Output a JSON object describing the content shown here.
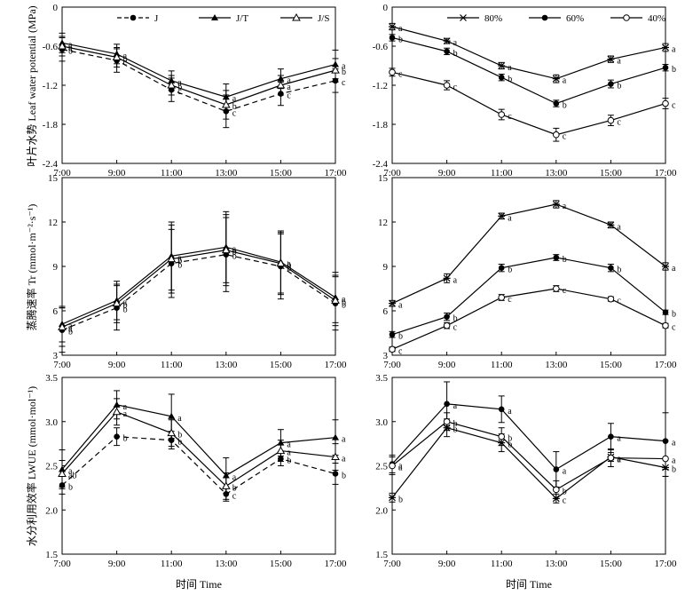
{
  "figure": {
    "x_axis_label": "时间 Time",
    "rows": [
      {
        "ylabel": "叶片水势 Leaf water potential (MPa)"
      },
      {
        "ylabel": "蒸腾速率 Tr (mmol·m⁻²·s⁻¹)"
      },
      {
        "ylabel": "水分利用效率 LWUE (mmol·mol⁻¹)"
      }
    ]
  },
  "chart_data": [
    {
      "id": "lwp-species",
      "row": 0,
      "col": 0,
      "type": "line",
      "x": [
        "7:00",
        "9:00",
        "11:00",
        "13:00",
        "15:00",
        "17:00"
      ],
      "ylim": [
        -2.4,
        0
      ],
      "yticks": [
        "0",
        "-0.6",
        "-1.2",
        "-1.8",
        "-2.4"
      ],
      "ytick_values": [
        0,
        -0.6,
        -1.2,
        -1.8,
        -2.4
      ],
      "legend": "top",
      "series": [
        {
          "name": "J",
          "marker": "filled-circle",
          "dash": true,
          "values": [
            -0.65,
            -0.82,
            -1.27,
            -1.6,
            -1.33,
            -1.13
          ],
          "errors": [
            0.18,
            0.18,
            0.18,
            0.25,
            0.18,
            0.18
          ],
          "labels": [
            "b",
            "c",
            "c",
            "c",
            "c",
            "c"
          ]
        },
        {
          "name": "J/T",
          "marker": "filled-triangle",
          "dash": false,
          "values": [
            -0.55,
            -0.72,
            -1.13,
            -1.38,
            -1.1,
            -0.88
          ],
          "errors": [
            0.15,
            0.15,
            0.15,
            0.2,
            0.15,
            0.22
          ],
          "labels": [
            "a",
            "a",
            "a",
            "a",
            "a",
            "a"
          ]
        },
        {
          "name": "J/S",
          "marker": "open-triangle",
          "dash": false,
          "values": [
            -0.6,
            -0.77,
            -1.2,
            -1.5,
            -1.2,
            -0.97
          ],
          "errors": [
            0.15,
            0.15,
            0.15,
            0.22,
            0.15,
            0.18
          ],
          "labels": [
            "a",
            "b",
            "b",
            "b",
            "a",
            "b"
          ]
        }
      ]
    },
    {
      "id": "lwp-moisture",
      "row": 0,
      "col": 1,
      "type": "line",
      "x": [
        "7:00",
        "9:00",
        "11:00",
        "13:00",
        "15:00",
        "17:00"
      ],
      "ylim": [
        -2.4,
        0
      ],
      "yticks": [
        "0",
        "-0.6",
        "-1.2",
        "-1.8",
        "-2.4"
      ],
      "ytick_values": [
        0,
        -0.6,
        -1.2,
        -1.8,
        -2.4
      ],
      "legend": "top",
      "series": [
        {
          "name": "80%",
          "marker": "asterisk",
          "dash": false,
          "values": [
            -0.3,
            -0.52,
            -0.9,
            -1.1,
            -0.8,
            -0.62
          ],
          "errors": [
            0.05,
            0.04,
            0.05,
            0.06,
            0.05,
            0.06
          ],
          "labels": [
            "a",
            "a",
            "a",
            "a",
            "a",
            "a"
          ]
        },
        {
          "name": "60%",
          "marker": "filled-circle",
          "dash": false,
          "values": [
            -0.47,
            -0.68,
            -1.08,
            -1.48,
            -1.18,
            -0.93
          ],
          "errors": [
            0.05,
            0.05,
            0.05,
            0.05,
            0.06,
            0.05
          ],
          "labels": [
            "b",
            "b",
            "b",
            "b",
            "b",
            "b"
          ]
        },
        {
          "name": "40%",
          "marker": "open-circle",
          "dash": false,
          "values": [
            -1.0,
            -1.2,
            -1.65,
            -1.96,
            -1.74,
            -1.48
          ],
          "errors": [
            0.06,
            0.07,
            0.08,
            0.1,
            0.08,
            0.08
          ],
          "labels": [
            "c",
            "c",
            "c",
            "c",
            "c",
            "c"
          ]
        }
      ]
    },
    {
      "id": "tr-species",
      "row": 1,
      "col": 0,
      "type": "line",
      "x": [
        "7:00",
        "9:00",
        "11:00",
        "13:00",
        "15:00",
        "17:00"
      ],
      "ylim": [
        3,
        15
      ],
      "yticks": [
        "3",
        "6",
        "9",
        "12",
        "15"
      ],
      "ytick_values": [
        3,
        6,
        9,
        12,
        15
      ],
      "series": [
        {
          "name": "J",
          "marker": "filled-circle",
          "dash": true,
          "values": [
            4.7,
            6.2,
            9.2,
            9.8,
            9.0,
            6.5
          ],
          "errors": [
            1.5,
            1.5,
            2.3,
            2.5,
            2.2,
            1.8
          ],
          "labels": [
            "b",
            "b",
            "b",
            "b",
            "b",
            "b"
          ]
        },
        {
          "name": "J/T",
          "marker": "filled-triangle",
          "dash": false,
          "values": [
            5.1,
            6.7,
            9.7,
            10.3,
            9.3,
            6.9
          ],
          "errors": [
            1.2,
            1.3,
            2.3,
            2.4,
            2.1,
            1.7
          ],
          "labels": [
            "a",
            "a",
            "a",
            "a",
            "a",
            "a"
          ]
        },
        {
          "name": "J/S",
          "marker": "open-triangle",
          "dash": false,
          "values": [
            4.9,
            6.5,
            9.5,
            10.1,
            9.2,
            6.7
          ],
          "errors": [
            1.3,
            1.3,
            2.3,
            2.4,
            2.1,
            1.7
          ],
          "labels": [
            "a",
            "b",
            "b",
            "b",
            "b",
            "b"
          ]
        }
      ]
    },
    {
      "id": "tr-moisture",
      "row": 1,
      "col": 1,
      "type": "line",
      "x": [
        "7:00",
        "9:00",
        "11:00",
        "13:00",
        "15:00",
        "17:00"
      ],
      "ylim": [
        3,
        15
      ],
      "yticks": [
        "3",
        "6",
        "9",
        "12",
        "15"
      ],
      "ytick_values": [
        3,
        6,
        9,
        12,
        15
      ],
      "series": [
        {
          "name": "80%",
          "marker": "asterisk",
          "dash": false,
          "values": [
            6.5,
            8.2,
            12.4,
            13.2,
            11.8,
            9.0
          ],
          "errors": [
            0.2,
            0.3,
            0.2,
            0.25,
            0.2,
            0.25
          ],
          "labels": [
            "a",
            "a",
            "a",
            "a",
            "a",
            "a"
          ]
        },
        {
          "name": "60%",
          "marker": "filled-circle",
          "dash": false,
          "values": [
            4.4,
            5.6,
            8.9,
            9.6,
            8.9,
            5.9
          ],
          "errors": [
            0.2,
            0.25,
            0.25,
            0.2,
            0.25,
            0.15
          ],
          "labels": [
            "b",
            "b",
            "b",
            "b",
            "b",
            "b"
          ]
        },
        {
          "name": "40%",
          "marker": "open-circle",
          "dash": false,
          "values": [
            3.4,
            5.0,
            6.9,
            7.5,
            6.8,
            5.0
          ],
          "errors": [
            0.15,
            0.2,
            0.2,
            0.2,
            0.15,
            0.15
          ],
          "labels": [
            "c",
            "c",
            "c",
            "c",
            "c",
            "c"
          ]
        }
      ]
    },
    {
      "id": "lwue-species",
      "row": 2,
      "col": 0,
      "type": "line",
      "x": [
        "7:00",
        "9:00",
        "11:00",
        "13:00",
        "15:00",
        "17:00"
      ],
      "ylim": [
        1.5,
        3.5
      ],
      "yticks": [
        "1.5",
        "2.0",
        "2.5",
        "3.0",
        "3.5"
      ],
      "ytick_values": [
        1.5,
        2.0,
        2.5,
        3.0,
        3.5
      ],
      "series": [
        {
          "name": "J",
          "marker": "filled-circle",
          "dash": true,
          "values": [
            2.28,
            2.83,
            2.79,
            2.18,
            2.58,
            2.41
          ],
          "errors": [
            0.1,
            0.1,
            0.1,
            0.08,
            0.08,
            0.12
          ],
          "labels": [
            "b",
            "b",
            "b",
            "c",
            "b",
            "b"
          ]
        },
        {
          "name": "J/T",
          "marker": "filled-triangle",
          "dash": false,
          "values": [
            2.46,
            3.19,
            3.06,
            2.39,
            2.76,
            2.82
          ],
          "errors": [
            0.22,
            0.16,
            0.25,
            0.2,
            0.15,
            0.2
          ],
          "labels": [
            "a",
            "a",
            "a",
            "a",
            "a",
            "a"
          ]
        },
        {
          "name": "J/S",
          "marker": "open-triangle",
          "dash": false,
          "values": [
            2.41,
            3.11,
            2.87,
            2.27,
            2.67,
            2.6
          ],
          "errors": [
            0.15,
            0.15,
            0.15,
            0.15,
            0.12,
            0.15
          ],
          "labels": [
            "ab",
            "a",
            "b",
            "b",
            "a",
            "a"
          ]
        }
      ]
    },
    {
      "id": "lwue-moisture",
      "row": 2,
      "col": 1,
      "type": "line",
      "x": [
        "7:00",
        "9:00",
        "11:00",
        "13:00",
        "15:00",
        "17:00"
      ],
      "ylim": [
        1.5,
        3.5
      ],
      "yticks": [
        "1.5",
        "2.0",
        "2.5",
        "3.0",
        "3.5"
      ],
      "ytick_values": [
        1.5,
        2.0,
        2.5,
        3.0,
        3.5
      ],
      "series": [
        {
          "name": "80%",
          "marker": "asterisk",
          "dash": false,
          "values": [
            2.14,
            2.93,
            2.76,
            2.13,
            2.6,
            2.48
          ],
          "errors": [
            0.05,
            0.1,
            0.1,
            0.05,
            0.05,
            0.1
          ],
          "labels": [
            "b",
            "b",
            "b",
            "c",
            "a",
            "b"
          ]
        },
        {
          "name": "60%",
          "marker": "filled-circle",
          "dash": false,
          "values": [
            2.52,
            3.2,
            3.14,
            2.46,
            2.83,
            2.78
          ],
          "errors": [
            0.1,
            0.25,
            0.15,
            0.2,
            0.15,
            0.32
          ],
          "labels": [
            "a",
            "a",
            "a",
            "a",
            "a",
            "a"
          ]
        },
        {
          "name": "40%",
          "marker": "open-circle",
          "dash": false,
          "values": [
            2.5,
            3.0,
            2.83,
            2.23,
            2.59,
            2.58
          ],
          "errors": [
            0.1,
            0.1,
            0.1,
            0.1,
            0.1,
            0.2
          ],
          "labels": [
            "a",
            "b",
            "b",
            "b",
            "a",
            "a"
          ]
        }
      ]
    }
  ]
}
